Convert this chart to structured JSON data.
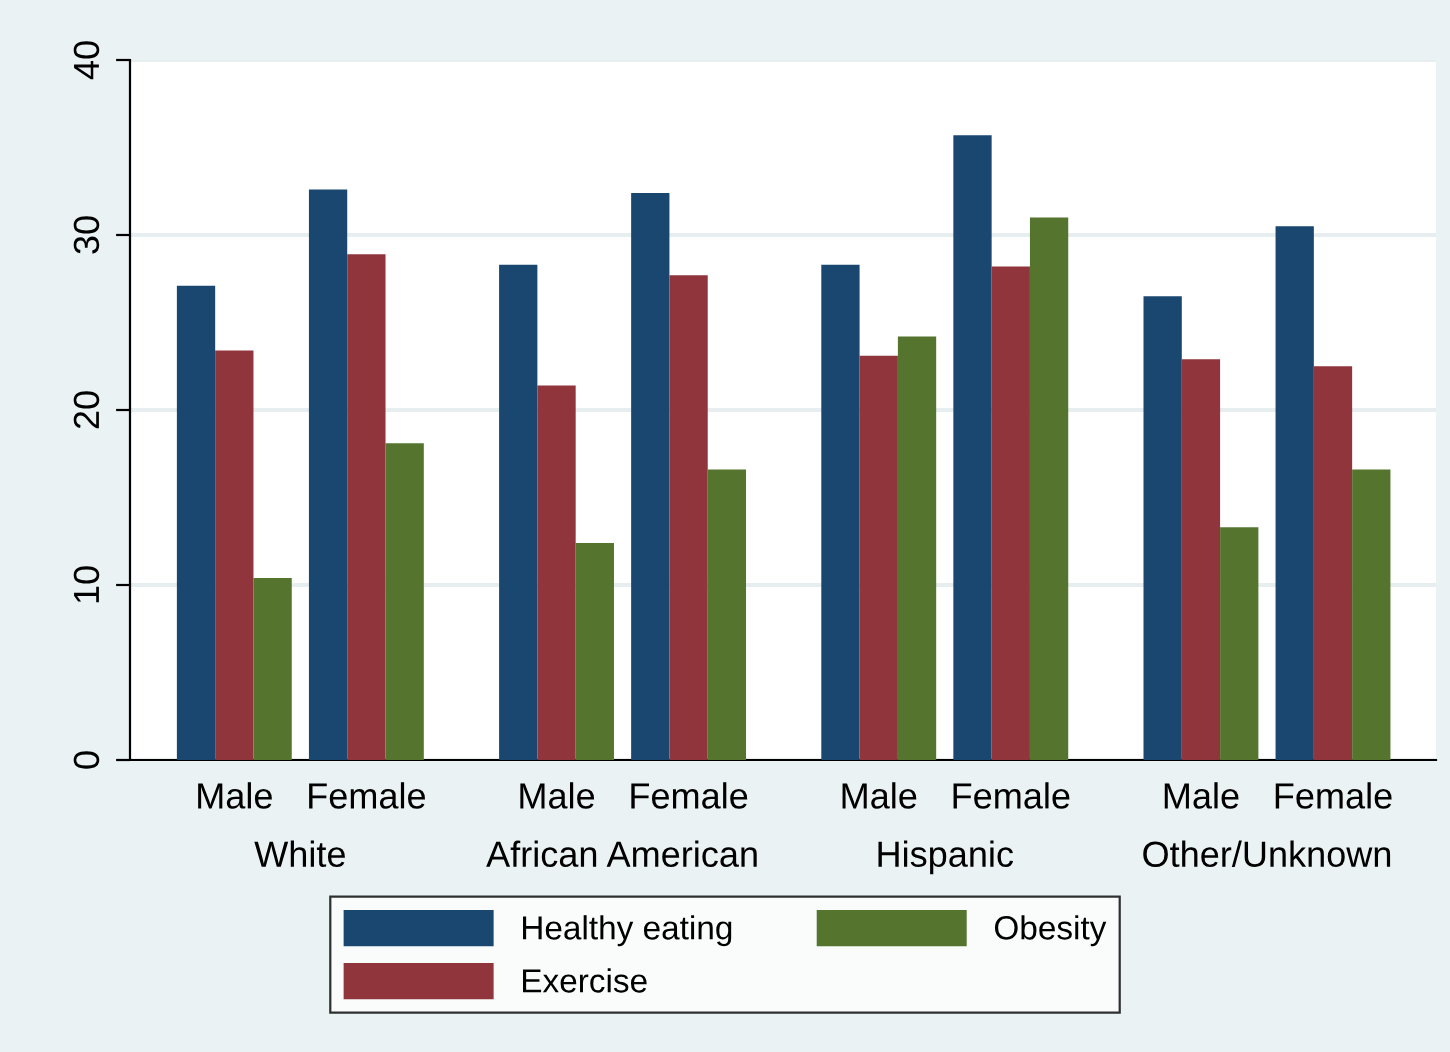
{
  "chart_data": {
    "type": "bar",
    "categories": [
      "Male",
      "Female",
      "Male",
      "Female",
      "Male",
      "Female",
      "Male",
      "Female"
    ],
    "series": [
      {
        "name": "Healthy eating",
        "color": "#1a476f",
        "values": [
          27.1,
          32.6,
          28.3,
          32.4,
          28.3,
          35.7,
          26.5,
          30.5
        ]
      },
      {
        "name": "Exercise",
        "color": "#90353b",
        "values": [
          23.4,
          28.9,
          21.4,
          27.7,
          23.1,
          28.2,
          22.9,
          22.5
        ]
      },
      {
        "name": "Obesity",
        "color": "#55752f",
        "values": [
          10.4,
          18.1,
          12.4,
          16.6,
          24.2,
          31.0,
          13.3,
          16.6
        ]
      }
    ],
    "annotations": [
      "White",
      "African American",
      "Hispanic",
      "Other/Unknown"
    ],
    "ylim": [
      0,
      40
    ],
    "yticks": [
      0,
      10,
      20,
      30,
      40
    ],
    "grid": "y",
    "legend": "bottom"
  }
}
